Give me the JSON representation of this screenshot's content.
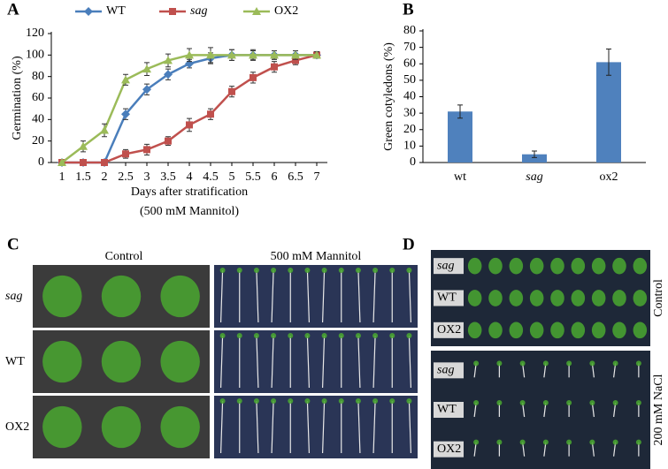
{
  "chart_data": [
    {
      "type": "line",
      "label": "A",
      "xlabel": "Days after stratification",
      "subtitle": "(500 mM Mannitol)",
      "ylabel": "Germination (%)",
      "x": [
        1,
        1.5,
        2,
        2.5,
        3,
        3.5,
        4,
        4.5,
        5,
        5.5,
        6,
        6.5,
        7
      ],
      "xlim": [
        0.75,
        7.25
      ],
      "xticks": [
        1,
        1.5,
        2,
        2.5,
        3,
        3.5,
        4,
        4.5,
        5,
        5.5,
        6,
        6.5,
        7
      ],
      "ylim": [
        0,
        120
      ],
      "yticks": [
        0,
        20,
        40,
        60,
        80,
        100,
        120
      ],
      "series": [
        {
          "name": "WT",
          "color": "#4a7ebb",
          "marker": "diamond",
          "values": [
            0,
            0,
            0,
            45,
            68,
            82,
            92,
            97,
            100,
            100,
            100,
            100,
            100
          ],
          "errors": [
            0,
            0,
            0,
            5,
            5,
            5,
            4,
            5,
            5,
            5,
            4,
            4,
            3
          ]
        },
        {
          "name": "sag",
          "color": "#c0504d",
          "marker": "square",
          "values": [
            0,
            0,
            0,
            8,
            12,
            20,
            35,
            45,
            66,
            79,
            89,
            95,
            100
          ],
          "errors": [
            0,
            0,
            0,
            4,
            5,
            4,
            6,
            5,
            5,
            5,
            5,
            4,
            3
          ]
        },
        {
          "name": "OX2",
          "color": "#9bbb59",
          "marker": "triangle",
          "values": [
            0,
            15,
            30,
            77,
            87,
            95,
            100,
            100,
            100,
            100,
            100,
            100,
            100
          ],
          "errors": [
            0,
            5,
            6,
            5,
            6,
            6,
            6,
            7,
            5,
            4,
            4,
            4,
            3
          ]
        }
      ]
    },
    {
      "type": "bar",
      "label": "B",
      "ylabel": "Green cotyledons (%)",
      "categories": [
        "wt",
        "sag",
        "ox2"
      ],
      "values": [
        31,
        5,
        61
      ],
      "errors": [
        4,
        2,
        8
      ],
      "color": "#4f81bd",
      "ylim": [
        0,
        80
      ],
      "yticks": [
        0,
        10,
        20,
        30,
        40,
        50,
        60,
        70,
        80
      ]
    }
  ],
  "photo_panels": [
    {
      "label": "C",
      "column_titles": [
        "Control",
        "500 mM Mannitol"
      ],
      "row_labels": [
        "sag",
        "WT",
        "OX2"
      ]
    },
    {
      "label": "D",
      "group_labels": [
        "Control",
        "200 mM NaCl"
      ],
      "row_labels": [
        "sag",
        "WT",
        "OX2",
        "sag",
        "WT",
        "OX2"
      ]
    }
  ]
}
